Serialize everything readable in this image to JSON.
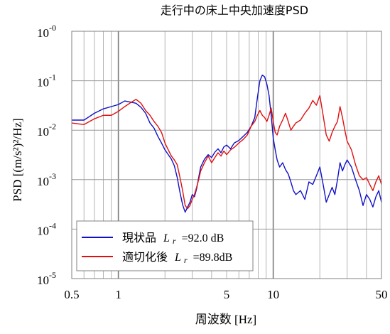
{
  "chart_data": {
    "type": "line",
    "title": "走行中の床上中央加速度PSD",
    "xlabel": "周波数 [Hz]",
    "ylabel": "PSD [(m/s²)²/Hz]",
    "x_scale": "log",
    "y_scale": "log",
    "xlim": [
      0.5,
      50
    ],
    "ylim": [
      1e-05,
      1
    ],
    "x_tick_labels": [
      "0.5",
      "1",
      "5",
      "10",
      "50"
    ],
    "x_tick_values": [
      0.5,
      1,
      5,
      10,
      50
    ],
    "y_tick_labels": [
      {
        "base": "10",
        "exp": "-0"
      },
      {
        "base": "10",
        "exp": "-1"
      },
      {
        "base": "10",
        "exp": "-2"
      },
      {
        "base": "10",
        "exp": "-3"
      },
      {
        "base": "10",
        "exp": "-4"
      },
      {
        "base": "10",
        "exp": "-5"
      }
    ],
    "y_tick_values": [
      1,
      0.1,
      0.01,
      0.001,
      0.0001,
      1e-05
    ],
    "grid": true,
    "legend": {
      "placement": "bottom-left",
      "entries": [
        {
          "label": "現状品",
          "metric": "L",
          "metric_sub": "r",
          "value": "=92.0 dB",
          "color": "#1010c8"
        },
        {
          "label": "適切化後",
          "metric": "L",
          "metric_sub": "r",
          "value": "=89.8dB",
          "color": "#e01010"
        }
      ]
    },
    "series": [
      {
        "color": "#1010c8",
        "points": [
          [
            0.5,
            0.016
          ],
          [
            0.6,
            0.016
          ],
          [
            0.7,
            0.022
          ],
          [
            0.8,
            0.027
          ],
          [
            0.9,
            0.03
          ],
          [
            1.0,
            0.033
          ],
          [
            1.1,
            0.039
          ],
          [
            1.2,
            0.037
          ],
          [
            1.3,
            0.035
          ],
          [
            1.4,
            0.029
          ],
          [
            1.5,
            0.022
          ],
          [
            1.6,
            0.014
          ],
          [
            1.7,
            0.011
          ],
          [
            1.8,
            0.0075
          ],
          [
            1.9,
            0.0055
          ],
          [
            2.0,
            0.004
          ],
          [
            2.1,
            0.0032
          ],
          [
            2.2,
            0.0026
          ],
          [
            2.3,
            0.0019
          ],
          [
            2.4,
            0.0011
          ],
          [
            2.5,
            0.00055
          ],
          [
            2.6,
            0.00031
          ],
          [
            2.7,
            0.00022
          ],
          [
            2.8,
            0.00028
          ],
          [
            2.9,
            0.00035
          ],
          [
            3.0,
            0.0005
          ],
          [
            3.1,
            0.00045
          ],
          [
            3.2,
            0.00065
          ],
          [
            3.3,
            0.0011
          ],
          [
            3.4,
            0.0018
          ],
          [
            3.6,
            0.0026
          ],
          [
            3.8,
            0.0032
          ],
          [
            4.0,
            0.0028
          ],
          [
            4.2,
            0.0036
          ],
          [
            4.4,
            0.0042
          ],
          [
            4.6,
            0.0035
          ],
          [
            4.8,
            0.0046
          ],
          [
            5.0,
            0.005
          ],
          [
            5.3,
            0.0042
          ],
          [
            5.6,
            0.0055
          ],
          [
            6.0,
            0.0062
          ],
          [
            6.4,
            0.0075
          ],
          [
            6.8,
            0.009
          ],
          [
            7.2,
            0.012
          ],
          [
            7.6,
            0.018
          ],
          [
            7.9,
            0.045
          ],
          [
            8.2,
            0.1
          ],
          [
            8.5,
            0.13
          ],
          [
            8.8,
            0.12
          ],
          [
            9.1,
            0.085
          ],
          [
            9.4,
            0.05
          ],
          [
            9.7,
            0.02
          ],
          [
            10.0,
            0.007
          ],
          [
            10.3,
            0.004
          ],
          [
            10.6,
            0.0025
          ],
          [
            11.0,
            0.0018
          ],
          [
            11.5,
            0.0022
          ],
          [
            12.0,
            0.0016
          ],
          [
            12.5,
            0.0013
          ],
          [
            13.0,
            0.0009
          ],
          [
            13.5,
            0.0006
          ],
          [
            14.0,
            0.0005
          ],
          [
            15.0,
            0.0006
          ],
          [
            16.0,
            0.0004
          ],
          [
            17.0,
            0.0009
          ],
          [
            18.0,
            0.0008
          ],
          [
            19.0,
            0.0012
          ],
          [
            20.0,
            0.0018
          ],
          [
            21.0,
            0.0008
          ],
          [
            22.0,
            0.00035
          ],
          [
            23.0,
            0.0005
          ],
          [
            24.0,
            0.0007
          ],
          [
            25.0,
            0.0005
          ],
          [
            26.0,
            0.001
          ],
          [
            27.0,
            0.0022
          ],
          [
            28.0,
            0.0015
          ],
          [
            29.0,
            0.002
          ],
          [
            30.0,
            0.0025
          ],
          [
            32.0,
            0.0018
          ],
          [
            34.0,
            0.001
          ],
          [
            36.0,
            0.0006
          ],
          [
            38.0,
            0.0003
          ],
          [
            40.0,
            0.0005
          ],
          [
            42.0,
            0.0004
          ],
          [
            44.0,
            0.00028
          ],
          [
            46.0,
            0.00045
          ],
          [
            48.0,
            0.0006
          ],
          [
            50.0,
            0.00035
          ]
        ]
      },
      {
        "color": "#e01010",
        "points": [
          [
            0.5,
            0.014
          ],
          [
            0.6,
            0.013
          ],
          [
            0.7,
            0.017
          ],
          [
            0.8,
            0.02
          ],
          [
            0.9,
            0.02
          ],
          [
            1.0,
            0.024
          ],
          [
            1.1,
            0.03
          ],
          [
            1.2,
            0.036
          ],
          [
            1.3,
            0.042
          ],
          [
            1.4,
            0.035
          ],
          [
            1.5,
            0.025
          ],
          [
            1.6,
            0.02
          ],
          [
            1.7,
            0.015
          ],
          [
            1.8,
            0.012
          ],
          [
            1.9,
            0.009
          ],
          [
            2.0,
            0.0055
          ],
          [
            2.1,
            0.004
          ],
          [
            2.2,
            0.003
          ],
          [
            2.3,
            0.0025
          ],
          [
            2.4,
            0.002
          ],
          [
            2.5,
            0.0011
          ],
          [
            2.6,
            0.0006
          ],
          [
            2.7,
            0.0003
          ],
          [
            2.8,
            0.00026
          ],
          [
            2.9,
            0.0003
          ],
          [
            3.0,
            0.0004
          ],
          [
            3.1,
            0.0005
          ],
          [
            3.2,
            0.0007
          ],
          [
            3.3,
            0.001
          ],
          [
            3.4,
            0.0015
          ],
          [
            3.6,
            0.0022
          ],
          [
            3.8,
            0.003
          ],
          [
            4.0,
            0.0022
          ],
          [
            4.2,
            0.0028
          ],
          [
            4.4,
            0.0035
          ],
          [
            4.6,
            0.003
          ],
          [
            4.8,
            0.0038
          ],
          [
            5.0,
            0.0032
          ],
          [
            5.3,
            0.004
          ],
          [
            5.6,
            0.0045
          ],
          [
            6.0,
            0.0055
          ],
          [
            6.4,
            0.0065
          ],
          [
            6.8,
            0.008
          ],
          [
            7.2,
            0.012
          ],
          [
            7.6,
            0.015
          ],
          [
            7.9,
            0.02
          ],
          [
            8.2,
            0.025
          ],
          [
            8.5,
            0.02
          ],
          [
            8.8,
            0.018
          ],
          [
            9.1,
            0.015
          ],
          [
            9.4,
            0.02
          ],
          [
            9.7,
            0.028
          ],
          [
            10.0,
            0.015
          ],
          [
            10.3,
            0.009
          ],
          [
            10.6,
            0.008
          ],
          [
            11.0,
            0.012
          ],
          [
            11.5,
            0.016
          ],
          [
            12.0,
            0.022
          ],
          [
            12.5,
            0.015
          ],
          [
            13.0,
            0.01
          ],
          [
            13.5,
            0.012
          ],
          [
            14.0,
            0.014
          ],
          [
            15.0,
            0.016
          ],
          [
            16.0,
            0.022
          ],
          [
            17.0,
            0.028
          ],
          [
            18.0,
            0.04
          ],
          [
            19.0,
            0.032
          ],
          [
            20.0,
            0.05
          ],
          [
            21.0,
            0.02
          ],
          [
            22.0,
            0.008
          ],
          [
            23.0,
            0.006
          ],
          [
            24.0,
            0.009
          ],
          [
            25.0,
            0.012
          ],
          [
            26.0,
            0.015
          ],
          [
            27.0,
            0.03
          ],
          [
            28.0,
            0.018
          ],
          [
            29.0,
            0.01
          ],
          [
            30.0,
            0.006
          ],
          [
            32.0,
            0.004
          ],
          [
            34.0,
            0.002
          ],
          [
            36.0,
            0.0012
          ],
          [
            38.0,
            0.001
          ],
          [
            40.0,
            0.0011
          ],
          [
            42.0,
            0.0008
          ],
          [
            44.0,
            0.0006
          ],
          [
            46.0,
            0.0009
          ],
          [
            48.0,
            0.0012
          ],
          [
            50.0,
            0.0008
          ]
        ]
      }
    ]
  }
}
